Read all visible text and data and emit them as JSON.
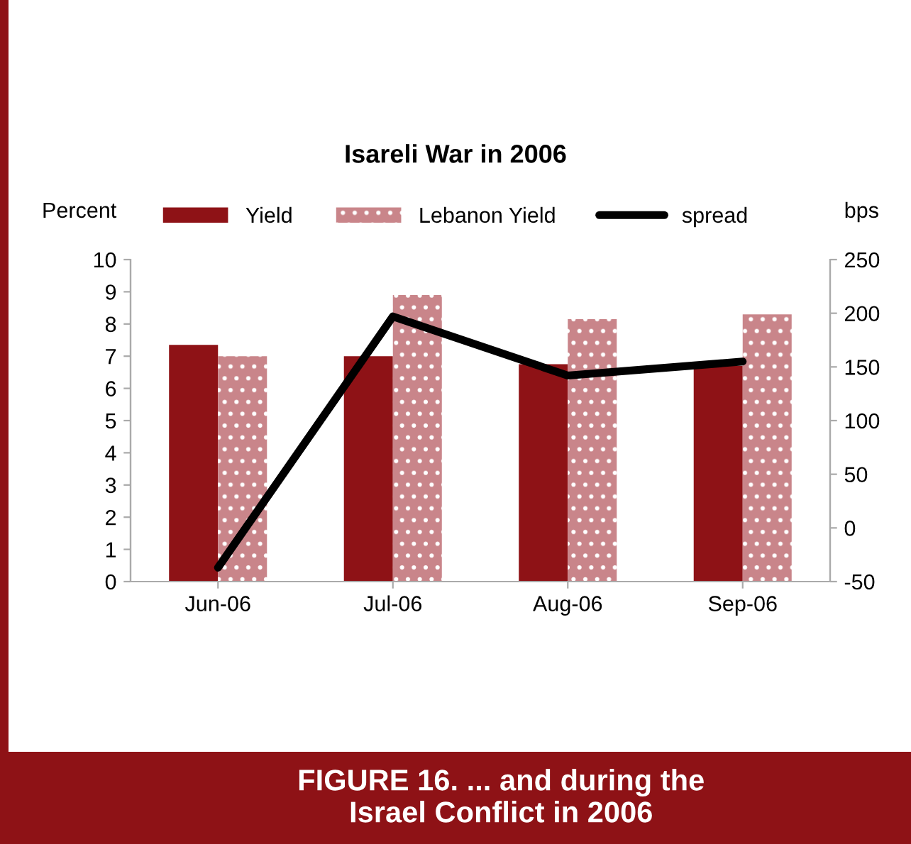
{
  "chart_data": {
    "type": "bar",
    "title": "Isareli War in 2006",
    "ylabel": "Percent",
    "y2label": "bps",
    "categories": [
      "Jun-06",
      "Jul-06",
      "Aug-06",
      "Sep-06"
    ],
    "series": [
      {
        "name": "Yield",
        "color": "#8e1216",
        "values": [
          7.35,
          7.0,
          6.75,
          6.7
        ]
      },
      {
        "name": "Lebanon Yield",
        "color": "#c9858a",
        "values": [
          7.0,
          8.9,
          8.15,
          8.3
        ]
      },
      {
        "name": "spread",
        "type": "line",
        "axis": "y2",
        "color": "#000000",
        "values": [
          -37,
          197,
          142,
          155
        ]
      }
    ],
    "ylim": [
      0,
      10
    ],
    "yticks": [
      0,
      1,
      2,
      3,
      4,
      5,
      6,
      7,
      8,
      9,
      10
    ],
    "y2lim": [
      -50,
      250
    ],
    "y2ticks": [
      -50,
      0,
      50,
      100,
      150,
      200,
      250
    ],
    "legend": "top",
    "grid": false,
    "marker": "none",
    "annotations": [
      "FIGURE 16. ... and during the\nIsrael Conflict in 2006"
    ]
  }
}
